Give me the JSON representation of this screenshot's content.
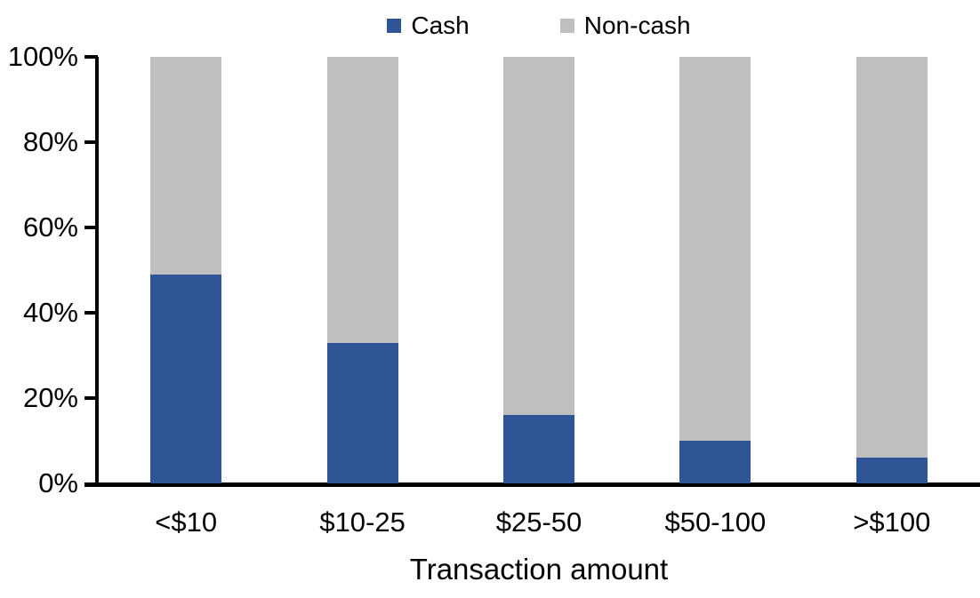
{
  "chart_data": {
    "type": "bar",
    "stacked": true,
    "orientation": "vertical",
    "title": "",
    "xlabel": "Transaction amount",
    "ylabel": "",
    "categories": [
      "<$10",
      "$10-25",
      "$25-50",
      "$50-100",
      ">$100"
    ],
    "series": [
      {
        "name": "Cash",
        "color": "#2F5597",
        "values": [
          49,
          33,
          16,
          10,
          6
        ]
      },
      {
        "name": "Non-cash",
        "color": "#BFBFBF",
        "values": [
          51,
          67,
          84,
          90,
          94
        ]
      }
    ],
    "ylim": [
      0,
      100
    ],
    "ytick_values": [
      0,
      20,
      40,
      60,
      80,
      100
    ],
    "ytick_labels": [
      "0%",
      "20%",
      "40%",
      "60%",
      "80%",
      "100%"
    ],
    "legend_position": "top",
    "grid": false,
    "colors": {
      "axis": "#000000",
      "text": "#000000",
      "background": "#FFFFFF"
    }
  }
}
